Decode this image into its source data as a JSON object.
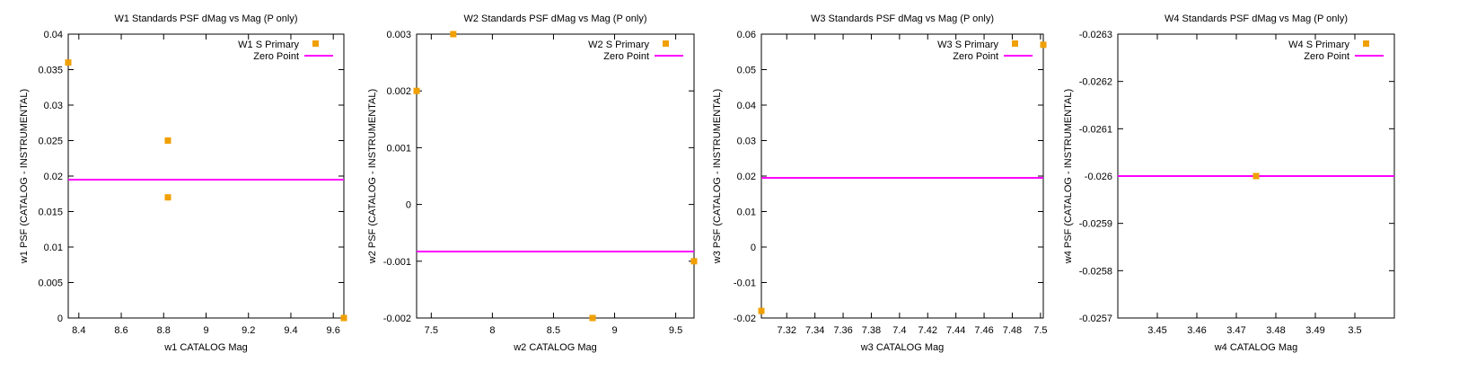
{
  "colors": {
    "points": "#f0a000",
    "zero_line": "#ff00ff",
    "frame": "#000000",
    "background": "#ffffff"
  },
  "legend_labels": {
    "zero_point": "Zero Point"
  },
  "chart_data": [
    {
      "type": "scatter",
      "title": "W1 Standards PSF dMag vs Mag (P only)",
      "xlabel": "w1 CATALOG Mag",
      "ylabel": "w1 PSF (CATALOG - INSTRUMENTAL)",
      "xlim": [
        8.35,
        9.65
      ],
      "ylim": [
        0,
        0.04
      ],
      "xticks": [
        "8.4",
        "8.6",
        "8.8",
        "9",
        "9.2",
        "9.4",
        "9.6"
      ],
      "yticks": [
        "0",
        "0.005",
        "0.01",
        "0.015",
        "0.02",
        "0.025",
        "0.03",
        "0.035",
        "0.04"
      ],
      "series": [
        {
          "name": "W1 S Primary",
          "x": [
            8.35,
            8.82,
            8.82,
            9.65
          ],
          "y": [
            0.036,
            0.025,
            0.017,
            0.0
          ]
        }
      ],
      "zero_point": 0.0195,
      "legend_position": "top-right",
      "grid": false
    },
    {
      "type": "scatter",
      "title": "W2 Standards PSF dMag vs Mag (P only)",
      "xlabel": "w2 CATALOG Mag",
      "ylabel": "w2 PSF (CATALOG - INSTRUMENTAL)",
      "xlim": [
        7.38,
        9.65
      ],
      "ylim": [
        -0.002,
        0.003
      ],
      "xticks": [
        "7.5",
        "8",
        "8.5",
        "9",
        "9.5"
      ],
      "yticks": [
        "-0.002",
        "-0.001",
        "0",
        "0.001",
        "0.002",
        "0.003"
      ],
      "series": [
        {
          "name": "W2 S Primary",
          "x": [
            7.38,
            7.68,
            8.82,
            9.65
          ],
          "y": [
            0.002,
            0.003,
            -0.002,
            -0.001
          ]
        }
      ],
      "zero_point": -0.00083,
      "legend_position": "top-right",
      "grid": false
    },
    {
      "type": "scatter",
      "title": "W3 Standards PSF dMag vs Mag (P only)",
      "xlabel": "w3 CATALOG Mag",
      "ylabel": "w3 PSF (CATALOG - INSTRUMENTAL)",
      "xlim": [
        7.302,
        7.502
      ],
      "ylim": [
        -0.02,
        0.06
      ],
      "xticks": [
        "7.32",
        "7.34",
        "7.36",
        "7.38",
        "7.4",
        "7.42",
        "7.44",
        "7.46",
        "7.48",
        "7.5"
      ],
      "yticks": [
        "-0.02",
        "-0.01",
        "0",
        "0.01",
        "0.02",
        "0.03",
        "0.04",
        "0.05",
        "0.06"
      ],
      "series": [
        {
          "name": "W3 S Primary",
          "x": [
            7.302,
            7.502
          ],
          "y": [
            -0.018,
            0.057
          ]
        }
      ],
      "zero_point": 0.0195,
      "legend_position": "top-right",
      "grid": false
    },
    {
      "type": "scatter",
      "title": "W4 Standards PSF dMag vs Mag (P only)",
      "xlabel": "w4 CATALOG Mag",
      "ylabel": "w4 PSF (CATALOG - INSTRUMENTAL)",
      "xlim": [
        3.44,
        3.51
      ],
      "ylim": [
        -0.0257,
        -0.0263
      ],
      "xticks": [
        "3.45",
        "3.46",
        "3.47",
        "3.48",
        "3.49",
        "3.5"
      ],
      "yticks": [
        "-0.0257",
        "-0.0258",
        "-0.0259",
        "-0.026",
        "-0.0261",
        "-0.0262",
        "-0.0263"
      ],
      "series": [
        {
          "name": "W4 S Primary",
          "x": [
            3.475
          ],
          "y": [
            -0.026
          ]
        }
      ],
      "zero_point": -0.026,
      "legend_position": "top-right",
      "grid": false
    }
  ]
}
